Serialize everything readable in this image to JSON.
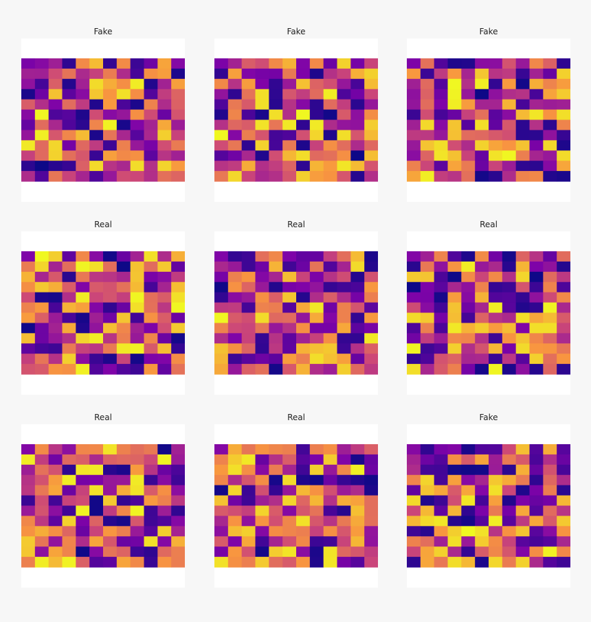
{
  "chart_data": [
    {
      "type": "heatmap",
      "title": "Fake",
      "grid": false,
      "colormap": "plasma",
      "rows": 12,
      "cols": 12,
      "seed": 11
    },
    {
      "type": "heatmap",
      "title": "Fake",
      "grid": false,
      "colormap": "plasma",
      "rows": 12,
      "cols": 12,
      "seed": 23
    },
    {
      "type": "heatmap",
      "title": "Fake",
      "grid": false,
      "colormap": "plasma",
      "rows": 12,
      "cols": 12,
      "seed": 37
    },
    {
      "type": "heatmap",
      "title": "Real",
      "grid": false,
      "colormap": "plasma",
      "rows": 12,
      "cols": 12,
      "seed": 41
    },
    {
      "type": "heatmap",
      "title": "Real",
      "grid": false,
      "colormap": "plasma",
      "rows": 12,
      "cols": 12,
      "seed": 53
    },
    {
      "type": "heatmap",
      "title": "Real",
      "grid": false,
      "colormap": "plasma",
      "rows": 12,
      "cols": 12,
      "seed": 67
    },
    {
      "type": "heatmap",
      "title": "Real",
      "grid": false,
      "colormap": "plasma",
      "rows": 12,
      "cols": 12,
      "seed": 71
    },
    {
      "type": "heatmap",
      "title": "Real",
      "grid": false,
      "colormap": "plasma",
      "rows": 12,
      "cols": 12,
      "seed": 83
    },
    {
      "type": "heatmap",
      "title": "Fake",
      "grid": false,
      "colormap": "plasma",
      "rows": 12,
      "cols": 12,
      "seed": 97
    }
  ]
}
